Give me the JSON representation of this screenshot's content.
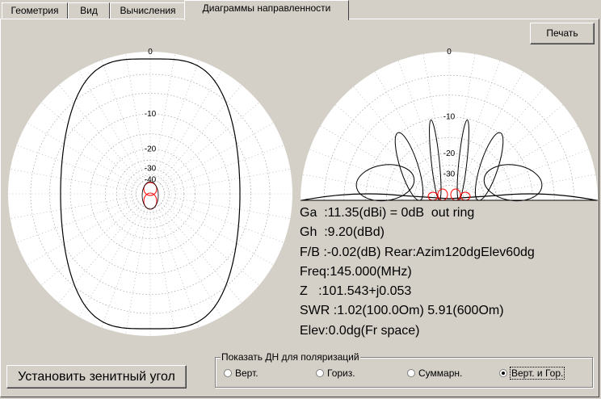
{
  "tabs": [
    {
      "label": "Геометрия"
    },
    {
      "label": "Вид"
    },
    {
      "label": "Вычисления"
    },
    {
      "label": "Диаграммы направленности"
    }
  ],
  "print_button": "Печать",
  "azimuth_plot": {
    "ring_labels": [
      "0",
      "-10",
      "-20",
      "-30",
      "-40"
    ]
  },
  "elevation_plot": {
    "ring_labels": [
      "0",
      "-10",
      "-20",
      "-30"
    ]
  },
  "info": [
    "Ga  :11.35(dBi) = 0dB  out ring",
    "Gh  :9.20(dBd)",
    "F/B :-0.02(dB) Rear:Azim120dgElev60dg",
    "Freq:145.000(MHz)",
    "Z   :101.543+j0.053",
    "SWR :1.02(100.0Om) 5.91(600Om)",
    "Elev:0.0dg(Fr space)"
  ],
  "zenith_button": "Установить зенитный угол",
  "polarization": {
    "title": "Показать ДН для поляризаций",
    "options": [
      {
        "label": "Верт.",
        "selected": false
      },
      {
        "label": "Гориз.",
        "selected": false
      },
      {
        "label": "Суммарн.",
        "selected": false
      },
      {
        "label": "Верт. и Гор.",
        "selected": true
      }
    ]
  },
  "colors": {
    "background": "#d4d0c8",
    "plot_fill": "#ffffff",
    "grid": "#a0a0a0",
    "vert_pattern": "#000000",
    "horiz_pattern": "#ff0000"
  }
}
